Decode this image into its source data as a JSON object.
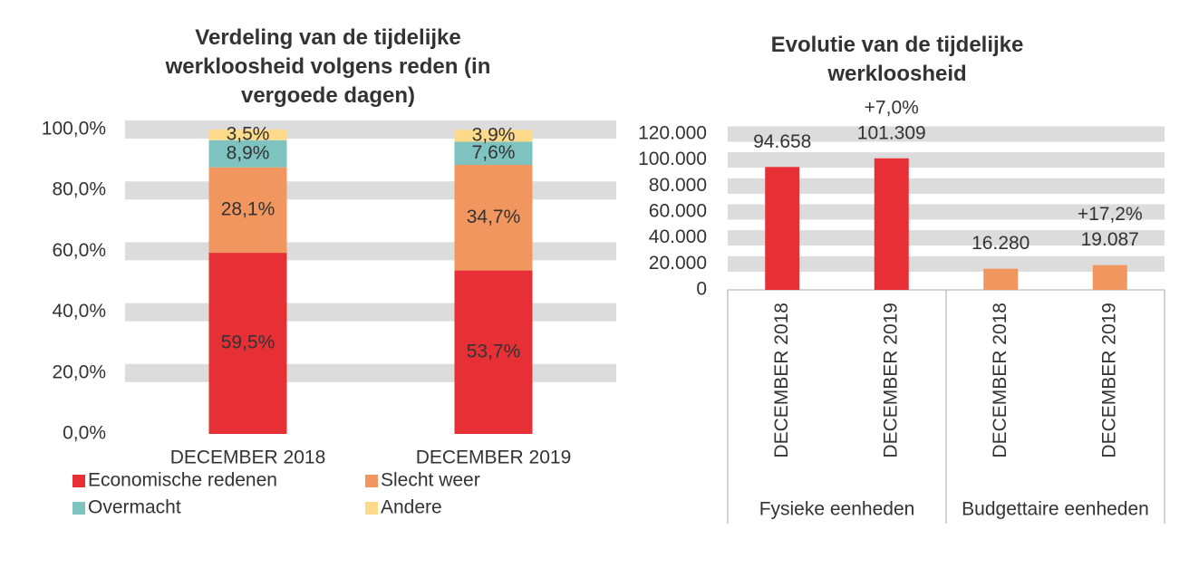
{
  "chart_data": [
    {
      "type": "stacked_bar",
      "title": "Verdeling van de tijdelijke werkloosheid volgens reden (in vergoede dagen)",
      "categories": [
        "DECEMBER 2018",
        "DECEMBER 2019"
      ],
      "series": [
        {
          "name": "Economische redenen",
          "color": "#e63036",
          "values": [
            59.5,
            53.7
          ],
          "value_labels": [
            "59,5%",
            "53,7%"
          ]
        },
        {
          "name": "Slecht weer",
          "color": "#f0965e",
          "values": [
            28.1,
            34.7
          ],
          "value_labels": [
            "28,1%",
            "34,7%"
          ]
        },
        {
          "name": "Overmacht",
          "color": "#7fc3c0",
          "values": [
            8.9,
            7.6
          ],
          "value_labels": [
            "8,9%",
            "7,6%"
          ]
        },
        {
          "name": "Andere",
          "color": "#fdd98a",
          "values": [
            3.5,
            3.9
          ],
          "value_labels": [
            "3,5%",
            "3,9%"
          ]
        }
      ],
      "ylim": [
        0,
        100
      ],
      "yticks": [
        {
          "value": 0,
          "label": "0,0%"
        },
        {
          "value": 20,
          "label": "20,0%"
        },
        {
          "value": 40,
          "label": "40,0%"
        },
        {
          "value": 60,
          "label": "60,0%"
        },
        {
          "value": 80,
          "label": "80,0%"
        },
        {
          "value": 100,
          "label": "100,0%"
        }
      ],
      "grid": true,
      "legend": "bottom"
    },
    {
      "type": "bar",
      "title": "Evolutie van de tijdelijke werkloosheid",
      "categories": [
        "DECEMBER 2018",
        "DECEMBER 2019",
        "DECEMBER 2018",
        "DECEMBER 2019"
      ],
      "groups": [
        "Fysieke eenheden",
        "Budgettaire eenheden"
      ],
      "values": [
        94658,
        101309,
        16280,
        19087
      ],
      "value_labels": [
        "94.658",
        "101.309",
        "16.280",
        "19.087"
      ],
      "change_labels": [
        null,
        "+7,0%",
        null,
        "+17,2%"
      ],
      "colors": [
        "#e63036",
        "#e63036",
        "#f0965e",
        "#f0965e"
      ],
      "ylim": [
        0,
        120000
      ],
      "yticks": [
        0,
        {
          "value": 20000,
          "label": "20.000"
        },
        {
          "value": 40000,
          "label": "40.000"
        },
        {
          "value": 60000,
          "label": "60.000"
        },
        {
          "value": 80000,
          "label": "80.000"
        },
        {
          "value": 100000,
          "label": "100.000"
        },
        {
          "value": 120000,
          "label": "120.000"
        }
      ],
      "grid": true
    }
  ]
}
